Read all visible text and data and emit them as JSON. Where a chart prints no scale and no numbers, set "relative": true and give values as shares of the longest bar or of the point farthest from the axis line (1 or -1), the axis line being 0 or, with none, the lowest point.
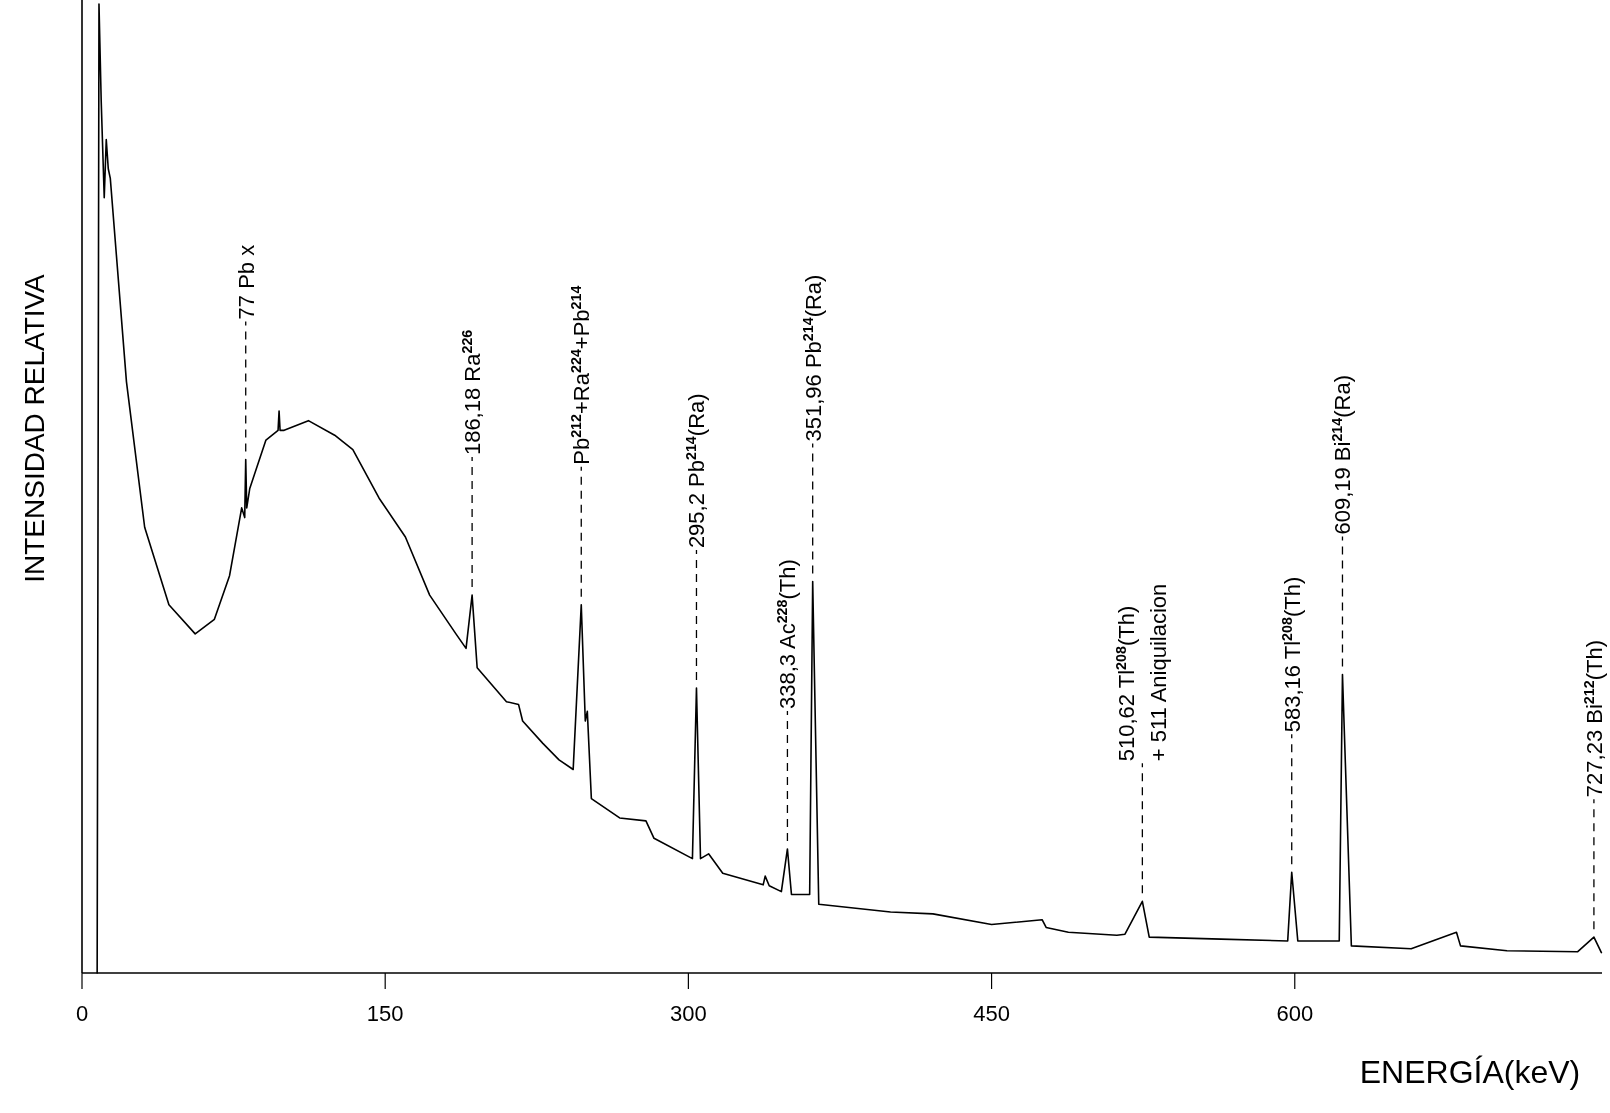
{
  "chart_data": {
    "type": "line",
    "relative": true,
    "color": "#000000",
    "xlabel": "ENERGÍA(keV)",
    "ylabel": "INTENSIDAD RELATIVA",
    "xlim": [
      0,
      752
    ],
    "xticks": [
      0,
      150,
      300,
      450,
      600
    ],
    "x": [
      7.5,
      8.4,
      9.5,
      11,
      12,
      13,
      14,
      22,
      31,
      43,
      56,
      65.5,
      73,
      79,
      80.5,
      81,
      81.5,
      83,
      91,
      97,
      97.5,
      98,
      100,
      112,
      125,
      134,
      147,
      160,
      172,
      185,
      190,
      193,
      195.5,
      210,
      216,
      218,
      228,
      236,
      243,
      247,
      249,
      250,
      252,
      266,
      279,
      283,
      302,
      304,
      306,
      310,
      317,
      337,
      338,
      340,
      346,
      349,
      351,
      360,
      361.5,
      364.5,
      400,
      421,
      450,
      475,
      477,
      488,
      512,
      516,
      524.6,
      528,
      563.5,
      596.5,
      598.5,
      601.5,
      622,
      623.6,
      628,
      657.6,
      680,
      682,
      705,
      740,
      748,
      751.7
    ],
    "values": [
      0,
      1,
      0.9,
      0.8,
      0.86,
      0.83,
      0.82,
      0.61,
      0.46,
      0.38,
      0.35,
      0.365,
      0.41,
      0.48,
      0.47,
      0.53,
      0.48,
      0.5,
      0.55,
      0.56,
      0.58,
      0.56,
      0.56,
      0.57,
      0.555,
      0.54,
      0.49,
      0.45,
      0.39,
      0.35,
      0.335,
      0.39,
      0.315,
      0.28,
      0.277,
      0.26,
      0.237,
      0.22,
      0.21,
      0.38,
      0.26,
      0.27,
      0.18,
      0.16,
      0.157,
      0.139,
      0.118,
      0.294,
      0.118,
      0.123,
      0.103,
      0.091,
      0.1,
      0.09,
      0.084,
      0.128,
      0.081,
      0.081,
      0.404,
      0.071,
      0.063,
      0.061,
      0.05,
      0.055,
      0.047,
      0.042,
      0.039,
      0.04,
      0.074,
      0.037,
      0.035,
      0.033,
      0.104,
      0.033,
      0.033,
      0.308,
      0.028,
      0.025,
      0.042,
      0.028,
      0.023,
      0.022,
      0.037,
      0.021
    ],
    "annotations": [
      {
        "text": "77 Pb x",
        "x": 81,
        "y": 0.53
      },
      {
        "text": "186,18 Ra$^{226}$",
        "x": 193,
        "y": 0.39
      },
      {
        "text": "Pb$^{212}$+Ra$^{224}$+Pb$^{214}$",
        "x": 247,
        "y": 0.38
      },
      {
        "text": "295,2 Pb$^{214}$(Ra)",
        "x": 304,
        "y": 0.294
      },
      {
        "text": "338,3 Ac$^{228}$(Th)",
        "x": 349,
        "y": 0.128
      },
      {
        "text": "351,96 Pb$^{214}$(Ra)",
        "x": 361.5,
        "y": 0.404
      },
      {
        "text": "510,62 Tl$^{208}$(Th)",
        "x": 524.6,
        "y": 0.074
      },
      {
        "text": "+ 511 Aniquilacion",
        "x": 524.6,
        "y": 0.074
      },
      {
        "text": "583,16 Tl$^{208}$(Th)",
        "x": 598.5,
        "y": 0.104
      },
      {
        "text": "609,19 Bi$^{214}$(Ra)",
        "x": 623.6,
        "y": 0.308
      },
      {
        "text": "727,23 Bi$^{212}$(Th)",
        "x": 748,
        "y": 0.037
      }
    ]
  }
}
